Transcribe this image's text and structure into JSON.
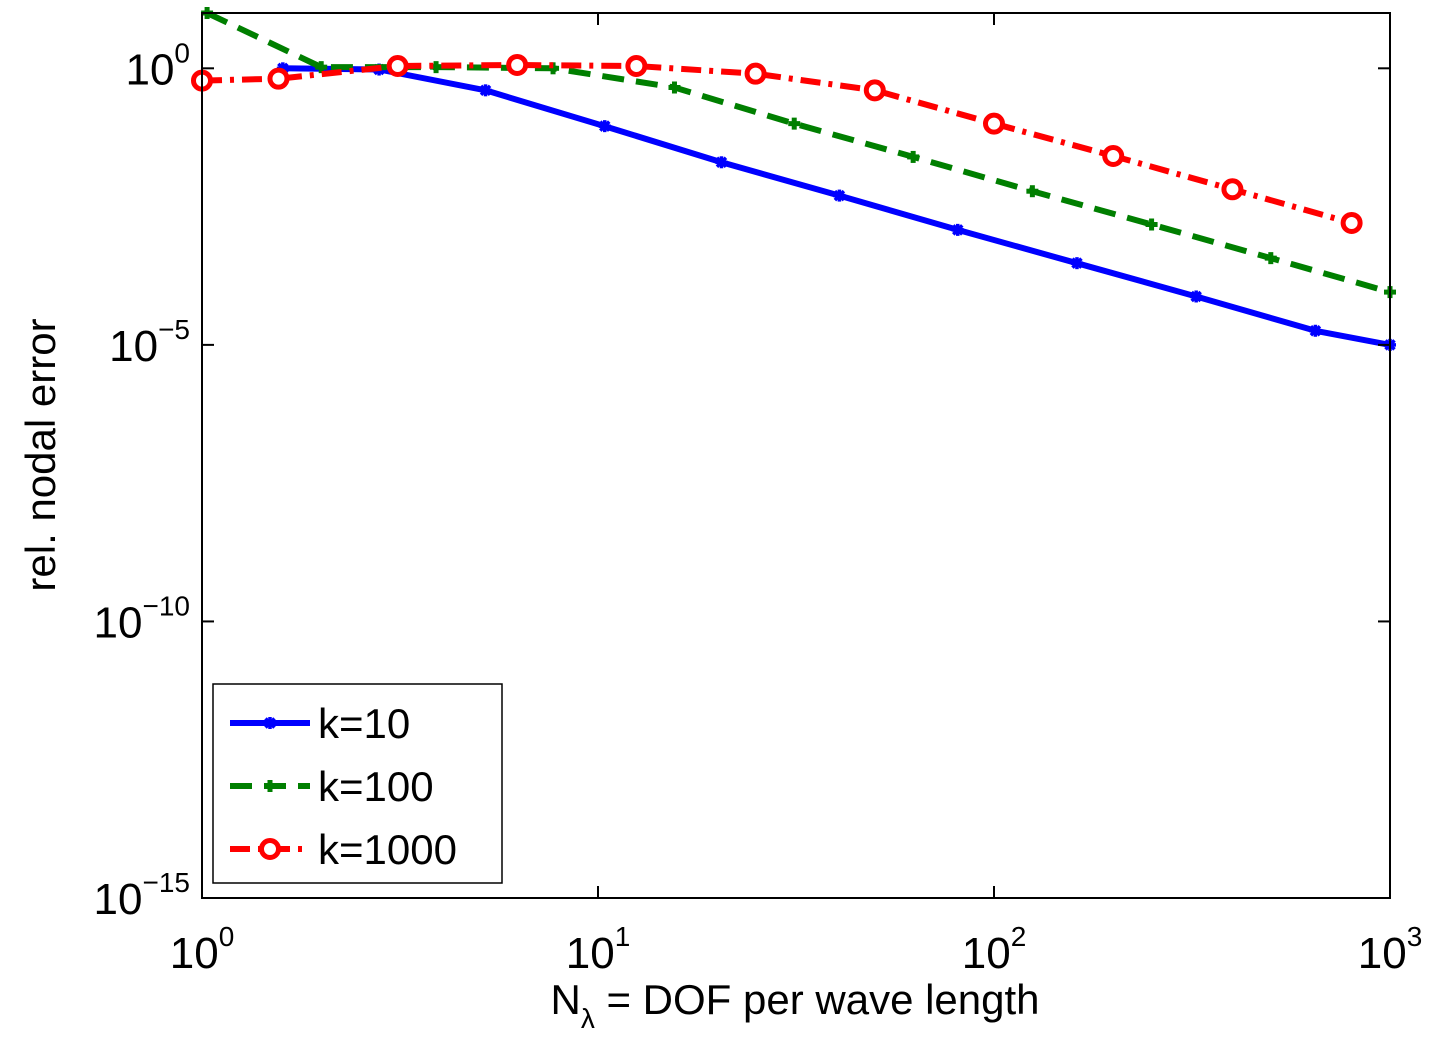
{
  "chart_data": {
    "type": "line",
    "xscale": "log",
    "yscale": "log",
    "xlim": [
      1,
      1000
    ],
    "ylim": [
      1e-15,
      10.0
    ],
    "xlabel": {
      "base": "N",
      "sub": "λ",
      "rest": " = DOF per wave length"
    },
    "ylabel": "rel. nodal error",
    "x_ticks": [
      {
        "value": 1,
        "base": "10",
        "exp": "0"
      },
      {
        "value": 10,
        "base": "10",
        "exp": "1"
      },
      {
        "value": 100,
        "base": "10",
        "exp": "2"
      },
      {
        "value": 1000,
        "base": "10",
        "exp": "3"
      }
    ],
    "y_ticks": [
      {
        "value": 1,
        "base": "10",
        "exp": "0"
      },
      {
        "value": 1e-05,
        "base": "10",
        "exp": "−5"
      },
      {
        "value": 1e-10,
        "base": "10",
        "exp": "−10"
      },
      {
        "value": 1e-15,
        "base": "10",
        "exp": "−15"
      }
    ],
    "grid": false,
    "legend": "bottom-left",
    "series": [
      {
        "name": "k=10",
        "color": "#0000ff",
        "line_style": "solid",
        "marker": "asterisk",
        "x": [
          1.6,
          2.8,
          5.2,
          10.4,
          20.5,
          40.7,
          81,
          162,
          324,
          648,
          1000
        ],
        "y": [
          1.0,
          0.95,
          0.4,
          0.09,
          0.02,
          0.005,
          0.0012,
          0.0003,
          7.5e-05,
          1.8e-05,
          1e-05
        ]
      },
      {
        "name": "k=100",
        "color": "#007f00",
        "line_style": "dashed",
        "marker": "plus",
        "x": [
          1.03,
          2.0,
          3.9,
          7.7,
          15.6,
          31.3,
          62.5,
          125,
          250,
          500,
          1000
        ],
        "y": [
          10.0,
          1.05,
          1.05,
          1.0,
          0.45,
          0.1,
          0.025,
          0.006,
          0.0015,
          0.00037,
          9e-05
        ]
      },
      {
        "name": "k=1000",
        "color": "#ff0000",
        "line_style": "dash-dot",
        "marker": "circle",
        "x": [
          1.0,
          1.56,
          3.12,
          6.25,
          12.5,
          25,
          50,
          100,
          200,
          400,
          800
        ],
        "y": [
          0.6,
          0.65,
          1.1,
          1.15,
          1.1,
          0.8,
          0.4,
          0.1,
          0.026,
          0.0065,
          0.0016
        ]
      }
    ]
  }
}
